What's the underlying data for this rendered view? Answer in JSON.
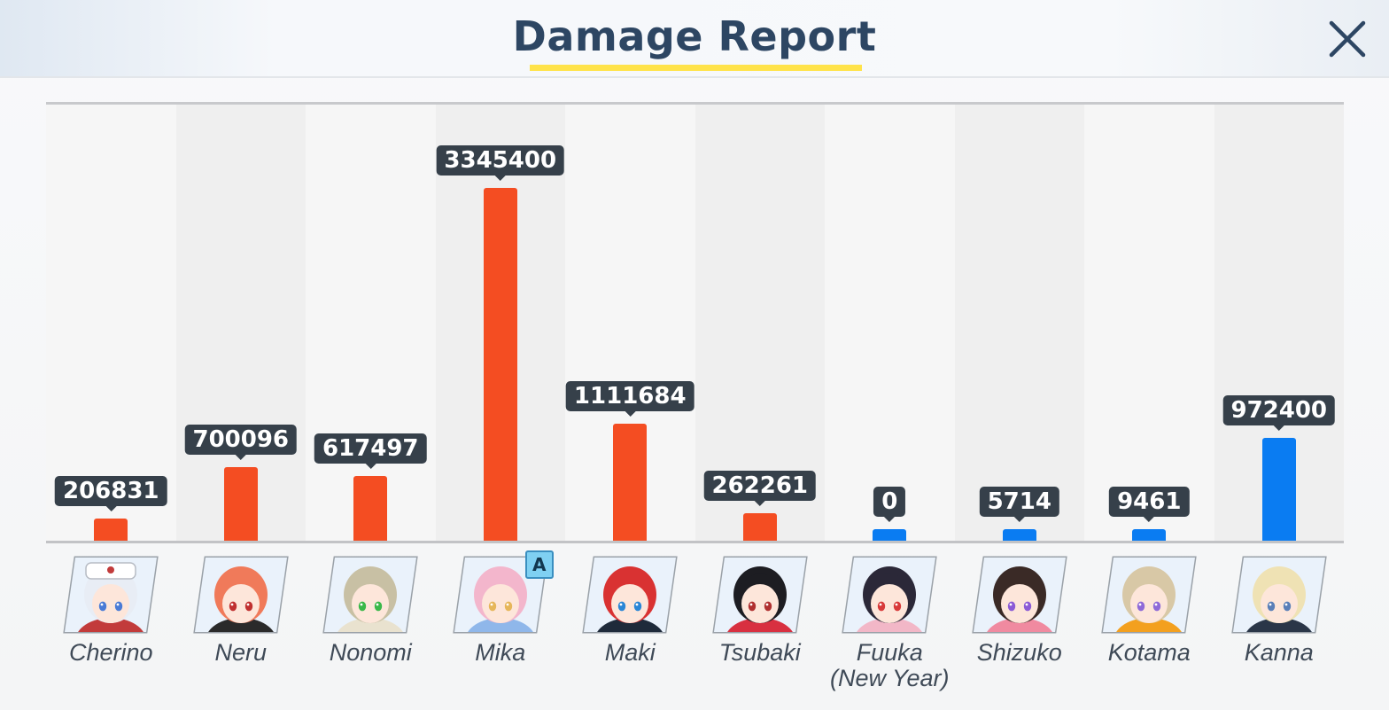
{
  "window": {
    "title": "Damage Report",
    "close_icon": "close-icon"
  },
  "colors": {
    "striker": "#f44d22",
    "special": "#0a7cf2",
    "label_bg": "#36404a",
    "title": "#2d4663",
    "underline": "#ffe34a"
  },
  "chart_data": {
    "type": "bar",
    "categories": [
      "Cherino",
      "Neru",
      "Nonomi",
      "Mika",
      "Maki",
      "Tsubaki",
      "Fuuka\n(New Year)",
      "Shizuko",
      "Kotama",
      "Kanna"
    ],
    "values": [
      206831,
      700096,
      617497,
      3345400,
      1111684,
      262261,
      0,
      5714,
      9461,
      972400
    ],
    "value_labels": [
      "206831",
      "700096",
      "617497",
      "3345400",
      "1111684",
      "262261",
      "0",
      "5714",
      "9461",
      "972400"
    ],
    "bar_roles": [
      "striker",
      "striker",
      "striker",
      "striker",
      "striker",
      "striker",
      "special",
      "special",
      "special",
      "special"
    ],
    "badges": [
      null,
      null,
      null,
      "A",
      null,
      null,
      null,
      null,
      null,
      null
    ],
    "title": "Damage Report",
    "xlabel": "",
    "ylabel": "",
    "ylim": [
      0,
      3345400
    ],
    "grid": false,
    "legend": "none"
  },
  "characters": [
    {
      "name": "Cherino",
      "hair": "#e8edf5",
      "accent": "#c23b3b",
      "eyes": "#4a7bd6",
      "hat": "#ffffff"
    },
    {
      "name": "Neru",
      "hair": "#f07a5a",
      "accent": "#2a2a2a",
      "eyes": "#c03030",
      "hat": null
    },
    {
      "name": "Nonomi",
      "hair": "#c8c0a4",
      "accent": "#e9e2cf",
      "eyes": "#3bb84a",
      "hat": null
    },
    {
      "name": "Mika",
      "hair": "#f3b6cc",
      "accent": "#8fb7ea",
      "eyes": "#e6b65a",
      "hat": null
    },
    {
      "name": "Maki",
      "hair": "#d93232",
      "accent": "#1e2a3a",
      "eyes": "#2a86d6",
      "hat": null
    },
    {
      "name": "Tsubaki",
      "hair": "#1d1d22",
      "accent": "#d83040",
      "eyes": "#b03030",
      "hat": null
    },
    {
      "name": "Fuuka (New Year)",
      "hair": "#2b2838",
      "accent": "#f2b7c7",
      "eyes": "#d83a3a",
      "hat": null
    },
    {
      "name": "Shizuko",
      "hair": "#3a2a26",
      "accent": "#f08aa0",
      "eyes": "#8b5bd6",
      "hat": null
    },
    {
      "name": "Kotama",
      "hair": "#d8c8a6",
      "accent": "#f3a01f",
      "eyes": "#8e6ad8",
      "hat": null
    },
    {
      "name": "Kanna",
      "hair": "#efe2b4",
      "accent": "#2a3648",
      "eyes": "#5a7fb8",
      "hat": null
    }
  ]
}
